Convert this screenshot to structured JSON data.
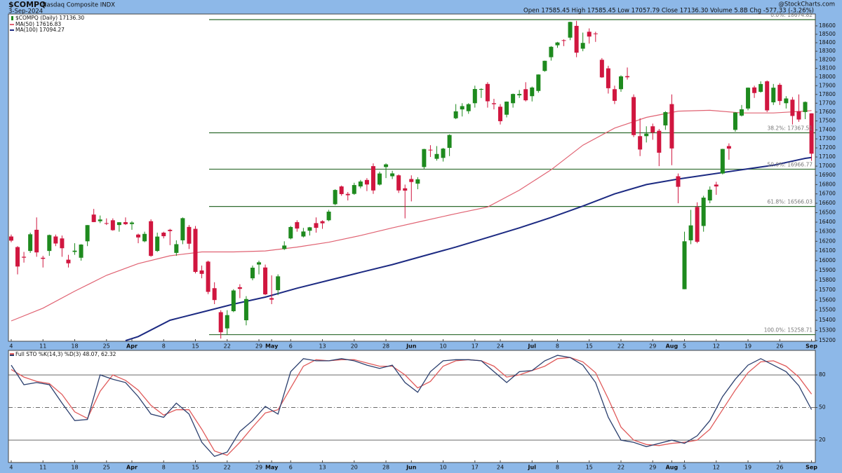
{
  "chart_data": [
    {
      "type": "candlestick",
      "title": "$COMPQ",
      "subtitle": "Nasdaq Composite INDX",
      "date": "3-Sep-2024",
      "credit": "@StockCharts.com",
      "quote": "Open 17585.45  High 17585.45  Low 17057.79  Close 17136.30  Volume 5.8B  Chg -577.33 (-3.26%)",
      "name": "$COMPQ (Daily) 17136.30",
      "up_color": "#1e8a1e",
      "down_color": "#d0163f",
      "open": [
        16250,
        16140,
        16040,
        16100,
        16320,
        16030,
        16100,
        16250,
        16230,
        16010,
        16090,
        16030,
        16200,
        16480,
        16410,
        16390,
        16420,
        16370,
        16400,
        16380,
        16270,
        16200,
        16410,
        16100,
        16290,
        16320,
        16080,
        16210,
        16350,
        16330,
        15900,
        15990,
        15720,
        15480,
        15320,
        15490,
        15730,
        15400,
        15820,
        15960,
        15930,
        15620,
        15700,
        16120,
        16230,
        16400,
        16250,
        16310,
        16390,
        16410,
        16420,
        16590,
        16780,
        16700,
        16700,
        16780,
        16850,
        17000,
        16800,
        16990,
        16890,
        16900,
        16760,
        16860,
        16810,
        16990,
        17180,
        17080,
        17090,
        17200,
        17530,
        17630,
        17610,
        17700,
        17860,
        17920,
        17700,
        17660,
        17570,
        17700,
        17790,
        17860,
        17780,
        17840,
        18070,
        18230,
        18370,
        18430,
        18460,
        18600,
        18330,
        18530,
        18510,
        18200,
        18100,
        17860,
        17860,
        18010,
        17770,
        17330,
        17330,
        17440,
        17390,
        17450,
        17690,
        16890,
        15710,
        16210,
        16560,
        16360,
        16630,
        16800,
        16920,
        17220,
        17400,
        17560,
        17640,
        17880,
        17830,
        17950,
        17710,
        17910,
        17700,
        17740,
        17610,
        17600,
        17585.45
      ],
      "high": [
        16270,
        16150,
        16090,
        16290,
        16450,
        16050,
        16270,
        16270,
        16260,
        16060,
        16180,
        16170,
        16370,
        16540,
        16470,
        16440,
        16440,
        16400,
        16450,
        16410,
        16280,
        16300,
        16430,
        16290,
        16300,
        16330,
        16210,
        16450,
        16370,
        16360,
        15950,
        16000,
        15780,
        15500,
        15500,
        15710,
        15760,
        15640,
        15950,
        16000,
        15960,
        15850,
        15860,
        16200,
        16360,
        16420,
        16340,
        16350,
        16450,
        16420,
        16530,
        16750,
        16790,
        16720,
        16820,
        16850,
        16870,
        17030,
        16940,
        17030,
        16950,
        16910,
        16800,
        16900,
        16880,
        17190,
        17230,
        17220,
        17200,
        17350,
        17690,
        17700,
        17700,
        17900,
        17870,
        17940,
        17750,
        17690,
        17720,
        17810,
        17850,
        17940,
        17890,
        18030,
        18190,
        18360,
        18410,
        18440,
        18650,
        18660,
        18520,
        18570,
        18530,
        18220,
        18130,
        17900,
        18020,
        18110,
        17800,
        17530,
        17440,
        17470,
        17410,
        17610,
        17800,
        16920,
        16300,
        16530,
        16610,
        16680,
        16780,
        16830,
        17190,
        17250,
        17600,
        17680,
        17880,
        17900,
        17950,
        17960,
        17920,
        17930,
        17780,
        17770,
        17800,
        17720,
        17585.45
      ],
      "low": [
        16190,
        15860,
        15980,
        16080,
        16040,
        15930,
        16050,
        16150,
        16040,
        15930,
        16060,
        16000,
        16150,
        16400,
        16390,
        16370,
        16310,
        16300,
        16370,
        16320,
        16180,
        16190,
        16040,
        16090,
        16230,
        16160,
        16050,
        16170,
        16120,
        15870,
        15820,
        15660,
        15560,
        15220,
        15260,
        15480,
        15620,
        15350,
        15800,
        15860,
        15650,
        15560,
        15650,
        16110,
        16220,
        16300,
        16240,
        16260,
        16290,
        16330,
        16410,
        16580,
        16680,
        16630,
        16690,
        16760,
        16730,
        16700,
        16790,
        16870,
        16860,
        16710,
        16440,
        16620,
        16750,
        16970,
        17100,
        17060,
        17050,
        17110,
        17520,
        17550,
        17580,
        17650,
        17760,
        17650,
        17630,
        17460,
        17540,
        17650,
        17760,
        17720,
        17720,
        17820,
        18060,
        18190,
        18340,
        18360,
        18430,
        18230,
        18300,
        18390,
        18410,
        17990,
        17810,
        17690,
        17830,
        17970,
        17320,
        17110,
        17260,
        17290,
        17000,
        17400,
        17010,
        16600,
        15710,
        16170,
        16180,
        16300,
        16600,
        16690,
        16910,
        17070,
        17380,
        17550,
        17620,
        17760,
        17820,
        17600,
        17680,
        17680,
        17640,
        17460,
        17490,
        17520,
        17057.79
      ],
      "close": [
        16207,
        15940,
        16031,
        16273,
        16085,
        16019,
        16265,
        16177,
        16128,
        15973,
        16103,
        16166,
        16369,
        16401,
        16428,
        16384,
        16316,
        16399,
        16379,
        16396,
        16240,
        16277,
        16049,
        16249,
        16253,
        16306,
        16170,
        16442,
        16175,
        15885,
        15865,
        15683,
        15601,
        15282,
        15451,
        15697,
        15713,
        15611,
        15928,
        15983,
        15658,
        15605,
        15840,
        16156,
        16349,
        16333,
        16302,
        16346,
        16340,
        16388,
        16511,
        16742,
        16698,
        16686,
        16795,
        16833,
        16801,
        16737,
        16920,
        17019,
        16921,
        16737,
        16735,
        16828,
        16857,
        17187,
        17173,
        17133,
        17192,
        17343,
        17608,
        17667,
        17689,
        17862,
        17862,
        17722,
        17689,
        17497,
        17718,
        17805,
        17805,
        17733,
        17879,
        18029,
        18188,
        18352,
        18403,
        18429,
        18647,
        18283,
        18398,
        18473,
        18509,
        17996,
        17871,
        17727,
        18007,
        17997,
        17342,
        17182,
        17358,
        17370,
        17147,
        17599,
        17194,
        16776,
        16200,
        16366,
        16195,
        16660,
        16745,
        16780,
        17188,
        17192,
        17595,
        17631,
        17877,
        17816,
        17919,
        17619,
        17877,
        17725,
        17754,
        17556,
        17516,
        17714,
        17136.3
      ],
      "lines": [
        {
          "name": "MA(50) 17616.83",
          "color": "#e06272",
          "x": [
            0,
            5,
            10,
            15,
            20,
            25,
            30,
            35,
            40,
            45,
            50,
            55,
            60,
            65,
            70,
            75,
            80,
            85,
            90,
            95,
            100,
            105,
            110,
            115,
            120,
            125,
            126
          ],
          "values": [
            15393,
            15520,
            15690,
            15850,
            15970,
            16050,
            16090,
            16090,
            16100,
            16140,
            16190,
            16260,
            16340,
            16415,
            16490,
            16560,
            16740,
            16960,
            17230,
            17420,
            17540,
            17610,
            17620,
            17590,
            17590,
            17610,
            17616.83
          ]
        },
        {
          "name": "MA(100) 17094.27",
          "color": "#1c2a82",
          "x": [
            18,
            20,
            25,
            30,
            35,
            40,
            45,
            50,
            55,
            60,
            65,
            70,
            75,
            80,
            85,
            90,
            95,
            100,
            105,
            110,
            115,
            120,
            125,
            126
          ],
          "values": [
            15200,
            15240,
            15400,
            15480,
            15560,
            15630,
            15720,
            15800,
            15880,
            15960,
            16050,
            16140,
            16240,
            16340,
            16450,
            16570,
            16700,
            16800,
            16860,
            16910,
            16960,
            17010,
            17085,
            17094.27
          ]
        }
      ],
      "retracements": [
        {
          "value": 18674.82,
          "label": "0.0%: 18674.82"
        },
        {
          "value": 17367.51,
          "label": "38.2%: 17367.51"
        },
        {
          "value": 16966.77,
          "label": "50.0%: 16966.77"
        },
        {
          "value": 16566.03,
          "label": "61.8%: 16566.03"
        },
        {
          "value": 15258.71,
          "label": "100.0%: 15258.71"
        }
      ],
      "retracement_color": "#2f6b2f",
      "log_scale": true,
      "grid": false,
      "ylim": [
        15194,
        18742
      ],
      "yticks": [
        15200,
        15300,
        15400,
        15500,
        15600,
        15700,
        15800,
        15900,
        16000,
        16100,
        16200,
        16300,
        16400,
        16500,
        16600,
        16700,
        16800,
        16900,
        17000,
        17100,
        17200,
        17300,
        17400,
        17500,
        17600,
        17700,
        17800,
        17900,
        18000,
        18100,
        18200,
        18300,
        18400,
        18500,
        18600
      ],
      "xlim": [
        -0.44,
        126.6
      ],
      "xticks": [
        {
          "value": 0,
          "label": "4"
        },
        {
          "value": 5,
          "label": "11"
        },
        {
          "value": 10,
          "label": "18"
        },
        {
          "value": 15,
          "label": "25"
        },
        {
          "value": 19,
          "label": "Apr"
        },
        {
          "value": 24,
          "label": "8"
        },
        {
          "value": 29,
          "label": "15"
        },
        {
          "value": 34,
          "label": "22"
        },
        {
          "value": 39,
          "label": "29"
        },
        {
          "value": 41,
          "label": "May"
        },
        {
          "value": 44,
          "label": "6"
        },
        {
          "value": 49,
          "label": "13"
        },
        {
          "value": 54,
          "label": "20"
        },
        {
          "value": 59,
          "label": "28"
        },
        {
          "value": 63,
          "label": "Jun"
        },
        {
          "value": 68,
          "label": "10"
        },
        {
          "value": 73,
          "label": "17"
        },
        {
          "value": 77,
          "label": "24"
        },
        {
          "value": 82,
          "label": "Jul"
        },
        {
          "value": 86,
          "label": "8"
        },
        {
          "value": 91,
          "label": "15"
        },
        {
          "value": 96,
          "label": "22"
        },
        {
          "value": 101,
          "label": "29"
        },
        {
          "value": 104,
          "label": "Aug"
        },
        {
          "value": 106,
          "label": "5"
        },
        {
          "value": 111,
          "label": "12"
        },
        {
          "value": 116,
          "label": "19"
        },
        {
          "value": 121,
          "label": "26"
        },
        {
          "value": 126,
          "label": "Sep"
        }
      ]
    },
    {
      "type": "line",
      "title": "Full STO %K(14,3) %D(3) 48.07, 62.32",
      "x": [
        0,
        2,
        4,
        6,
        8,
        10,
        12,
        14,
        16,
        18,
        20,
        22,
        24,
        26,
        28,
        30,
        32,
        34,
        36,
        38,
        40,
        42,
        44,
        46,
        48,
        50,
        52,
        54,
        56,
        58,
        60,
        62,
        64,
        66,
        68,
        70,
        72,
        74,
        76,
        78,
        80,
        82,
        84,
        86,
        88,
        90,
        92,
        94,
        96,
        98,
        100,
        102,
        104,
        106,
        108,
        110,
        112,
        114,
        116,
        118,
        120,
        122,
        124,
        126
      ],
      "series": [
        {
          "color": "#e05a5a",
          "values": [
            85,
            78,
            74,
            72,
            62,
            46,
            40,
            65,
            80,
            75,
            66,
            52,
            43,
            48,
            48,
            30,
            10,
            6,
            18,
            32,
            45,
            48,
            68,
            88,
            94,
            93,
            94,
            94,
            91,
            88,
            88,
            80,
            68,
            74,
            88,
            93,
            94,
            93,
            88,
            78,
            80,
            84,
            88,
            95,
            96,
            92,
            82,
            58,
            32,
            20,
            16,
            15,
            17,
            18,
            20,
            30,
            48,
            66,
            82,
            92,
            93,
            88,
            78,
            62.32
          ]
        },
        {
          "color": "#2b3f6e",
          "values": [
            89,
            71,
            73,
            71,
            54,
            38,
            39,
            80,
            76,
            73,
            60,
            44,
            41,
            54,
            44,
            18,
            5,
            9,
            28,
            38,
            51,
            44,
            83,
            95,
            93,
            93,
            95,
            93,
            89,
            86,
            89,
            73,
            64,
            83,
            93,
            94,
            94,
            93,
            83,
            73,
            83,
            84,
            93,
            98,
            96,
            89,
            73,
            41,
            20,
            18,
            14,
            17,
            20,
            17,
            24,
            38,
            60,
            76,
            89,
            95,
            89,
            83,
            70,
            48.07
          ]
        }
      ],
      "ylim": [
        -0.6,
        102.6
      ],
      "yticks": [
        20,
        50,
        80
      ],
      "tick_line_styles": [
        "solid",
        "dash-dot",
        "solid"
      ],
      "grid": true
    }
  ]
}
